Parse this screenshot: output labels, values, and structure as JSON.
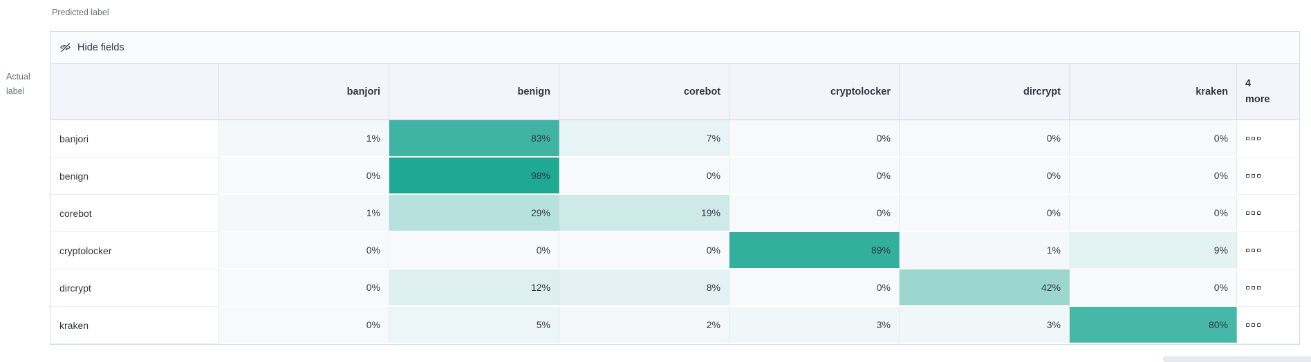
{
  "labels": {
    "predicted_axis": "Predicted label",
    "actual_axis": "Actual label"
  },
  "toolbar": {
    "hide_fields": "Hide fields",
    "icon": "eye-closed-icon"
  },
  "matrix": {
    "predicted_columns": [
      "banjori",
      "benign",
      "corebot",
      "cryptolocker",
      "dircrypt",
      "kraken"
    ],
    "more_header": {
      "count": "4",
      "word": "more"
    },
    "value_suffix": "%",
    "rows": [
      {
        "actual": "banjori",
        "values": [
          1,
          83,
          7,
          0,
          0,
          0
        ]
      },
      {
        "actual": "benign",
        "values": [
          0,
          98,
          0,
          0,
          0,
          0
        ]
      },
      {
        "actual": "corebot",
        "values": [
          1,
          29,
          19,
          0,
          0,
          0
        ]
      },
      {
        "actual": "cryptolocker",
        "values": [
          0,
          0,
          0,
          89,
          1,
          9
        ]
      },
      {
        "actual": "dircrypt",
        "values": [
          0,
          12,
          8,
          0,
          42,
          0
        ]
      },
      {
        "actual": "kraken",
        "values": [
          0,
          5,
          2,
          3,
          3,
          80
        ]
      }
    ],
    "row_actions_icon": "boxes-horizontal-icon"
  },
  "colors": {
    "heat_zero": "#F7F9FC",
    "heat_full": "#1BA692",
    "panel_border": "#D3DAE6",
    "header_bg": "#F3F5FA",
    "toolbar_bg": "#FAFBFD",
    "text": "#343741",
    "axis_text": "#69707D"
  }
}
